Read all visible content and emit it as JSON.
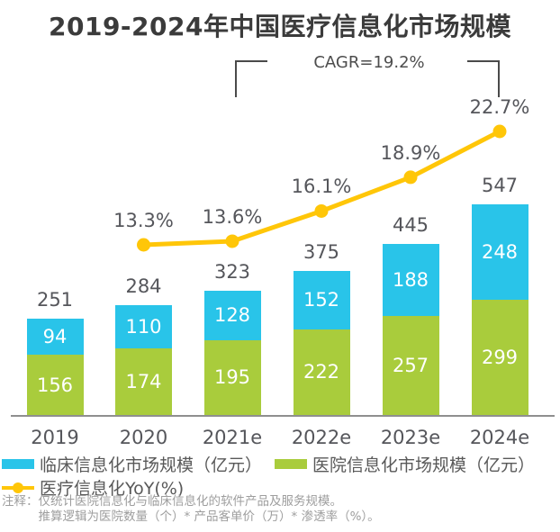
{
  "title": "2019-2024年中国医疗信息化市场规模",
  "annotation": {
    "cagr_label": "CAGR=19.2%"
  },
  "chart_data": {
    "type": "bar",
    "subtype": "stacked-bars-with-yoy-line",
    "title": "2019-2024年中国医疗信息化市场规模",
    "categories": [
      "2019",
      "2020",
      "2021e",
      "2022e",
      "2023e",
      "2024e"
    ],
    "series": [
      {
        "name": "医院信息化市场规模（亿元）",
        "color": "#A9CC3C",
        "values": [
          156,
          174,
          195,
          222,
          257,
          299
        ]
      },
      {
        "name": "临床信息化市场规模（亿元）",
        "color": "#29C4E9",
        "values": [
          94,
          110,
          128,
          152,
          188,
          248
        ]
      }
    ],
    "totals": [
      251,
      284,
      323,
      375,
      445,
      547
    ],
    "line_series": {
      "name": "医疗信息化YoY(%)",
      "color": "#FFC608",
      "categories": [
        "2020",
        "2021e",
        "2022e",
        "2023e",
        "2024e"
      ],
      "values": [
        13.3,
        13.6,
        16.1,
        18.9,
        22.7
      ],
      "labels": [
        "13.3%",
        "13.6%",
        "16.1%",
        "18.9%",
        "22.7%"
      ]
    },
    "annotations": [
      "CAGR=19.2%"
    ],
    "grid": false,
    "legend_position": "bottom-left"
  },
  "legend": {
    "items": [
      {
        "label": "临床信息化市场规模（亿元）",
        "color": "#29C4E9",
        "marker": "swatch"
      },
      {
        "label": "医院信息化市场规模（亿元）",
        "color": "#A9CC3C",
        "marker": "swatch"
      },
      {
        "label": "医疗信息化YoY(%)",
        "color": "#FFC608",
        "marker": "line-dot"
      }
    ]
  },
  "footnote": {
    "prefix": "注释：",
    "line1": "仅统计医院信息化与临床信息化的软件产品及服务规模。",
    "line2": "推算逻辑为医院数量（个）* 产品客单价（万）* 渗透率（%）。"
  },
  "colors": {
    "clinical_blue": "#29C4E9",
    "hospital_green": "#A9CC3C",
    "yoy_yellow": "#FFC608",
    "title_text": "#3B3B3B",
    "value_text": "#55565B",
    "legend_text": "#595959",
    "footnote_text": "#9E9E9E",
    "axis_line": "#8F8F8F",
    "bracket": "#4A4A4A"
  }
}
